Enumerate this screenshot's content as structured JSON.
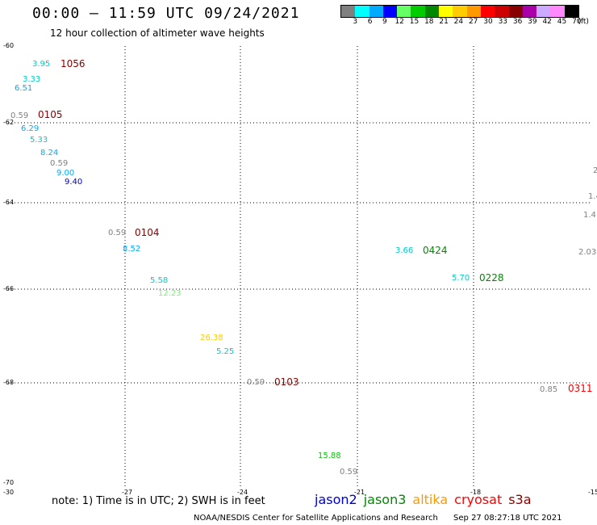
{
  "header": {
    "title": "00:00 – 11:59 UTC 09/24/2021",
    "subtitle": "12 hour collection of altimeter wave heights"
  },
  "legend": {
    "colors": [
      "#808080",
      "#00ffff",
      "#00aaff",
      "#0000ff",
      "#66ff66",
      "#00cc00",
      "#008800",
      "#ffff00",
      "#ffcc00",
      "#ff9900",
      "#ff0000",
      "#cc0000",
      "#880000",
      "#aa00aa",
      "#ccaaff",
      "#ff88ff",
      "#000000"
    ],
    "labels": [
      "3",
      "6",
      "9",
      "12",
      "15",
      "18",
      "21",
      "24",
      "27",
      "30",
      "33",
      "36",
      "39",
      "42",
      "45",
      "70",
      "(ft)"
    ]
  },
  "map": {
    "x_ticks": [
      "-30",
      "-27",
      "-24",
      "-21",
      "-18",
      "-15"
    ],
    "y_ticks": [
      "-60",
      "-62",
      "-64",
      "-66",
      "-68",
      "-70"
    ],
    "observations": [
      {
        "text": "3.95",
        "color": "#00cccc",
        "kind": "obs"
      },
      {
        "text": "1056",
        "color": "#880000",
        "kind": "time"
      },
      {
        "text": "3.33",
        "color": "#00cccc",
        "kind": "obs"
      },
      {
        "text": "6.51",
        "color": "#00aaff",
        "kind": "obs"
      },
      {
        "text": "0.59",
        "color": "#808080",
        "kind": "obs"
      },
      {
        "text": "0105",
        "color": "#880000",
        "kind": "time"
      },
      {
        "text": "6.29",
        "color": "#00aaff",
        "kind": "obs"
      },
      {
        "text": "5.33",
        "color": "#00cccc",
        "kind": "obs"
      },
      {
        "text": "8.24",
        "color": "#00aaff",
        "kind": "obs"
      },
      {
        "text": "0.59",
        "color": "#808080",
        "kind": "obs"
      },
      {
        "text": "9.00",
        "color": "#00aaff",
        "kind": "obs"
      },
      {
        "text": "9.40",
        "color": "#0000cc",
        "kind": "obs"
      },
      {
        "text": "0.59",
        "color": "#808080",
        "kind": "obs"
      },
      {
        "text": "0104",
        "color": "#880000",
        "kind": "time"
      },
      {
        "text": "8.52",
        "color": "#00aaff",
        "kind": "obs"
      },
      {
        "text": "5.58",
        "color": "#00cccc",
        "kind": "obs"
      },
      {
        "text": "12.23",
        "color": "#66ff66",
        "kind": "obs"
      },
      {
        "text": "26.38",
        "color": "#ffcc00",
        "kind": "obs"
      },
      {
        "text": "5.25",
        "color": "#00cccc",
        "kind": "obs"
      },
      {
        "text": "0.59",
        "color": "#808080",
        "kind": "obs"
      },
      {
        "text": "0103",
        "color": "#880000",
        "kind": "time"
      },
      {
        "text": "3.66",
        "color": "#00cccc",
        "kind": "obs"
      },
      {
        "text": "0424",
        "color": "#008800",
        "kind": "time"
      },
      {
        "text": "5.70",
        "color": "#00cccc",
        "kind": "obs"
      },
      {
        "text": "0228",
        "color": "#008800",
        "kind": "time"
      },
      {
        "text": "2",
        "color": "#808080",
        "kind": "obs"
      },
      {
        "text": "1.4",
        "color": "#808080",
        "kind": "obs"
      },
      {
        "text": "1.4",
        "color": "#808080",
        "kind": "obs"
      },
      {
        "text": "2.03",
        "color": "#808080",
        "kind": "obs"
      },
      {
        "text": "0.85",
        "color": "#808080",
        "kind": "obs"
      },
      {
        "text": "0311",
        "color": "#ff0000",
        "kind": "time"
      },
      {
        "text": "15.88",
        "color": "#00cc00",
        "kind": "obs"
      },
      {
        "text": "0.59",
        "color": "#808080",
        "kind": "obs"
      }
    ]
  },
  "footer": {
    "note": "note: 1) Time is in UTC; 2) SWH is in feet",
    "satellites": [
      {
        "name": "jason2",
        "color": "#0000cc"
      },
      {
        "name": "jason3",
        "color": "#008800"
      },
      {
        "name": "altika",
        "color": "#ff9900"
      },
      {
        "name": "cryosat",
        "color": "#ff0000"
      },
      {
        "name": "s3a",
        "color": "#880000"
      }
    ],
    "credit": "NOAA/NESDIS Center for Satellite Applications and Research",
    "timestamp": "Sep 27 08:27:18 UTC 2021"
  }
}
